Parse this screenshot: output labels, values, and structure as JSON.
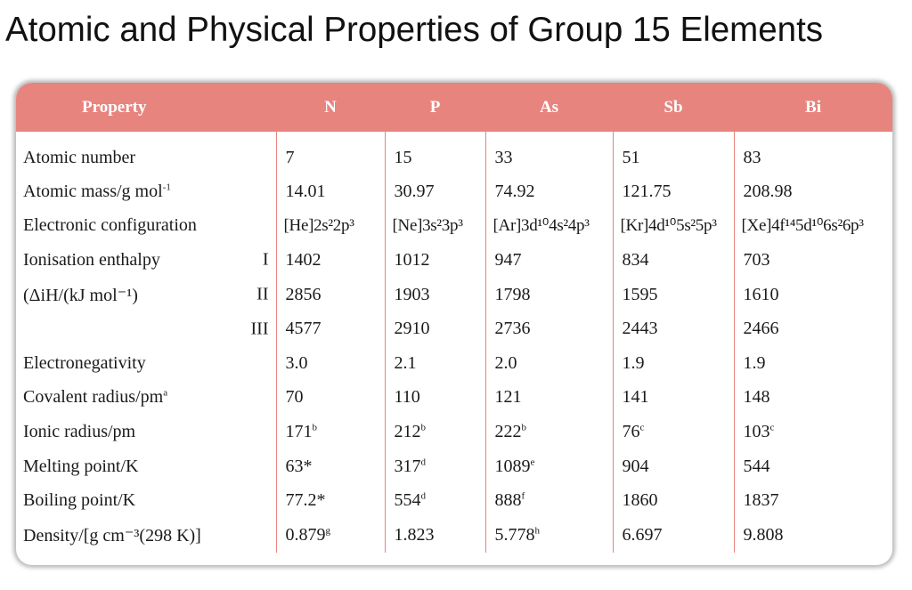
{
  "title": "Atomic and Physical Properties of Group 15 Elements",
  "colors": {
    "header_bg": "#e7847e",
    "header_text": "#ffffff",
    "divider": "#e7847e"
  },
  "table": {
    "headers": [
      "Property",
      "N",
      "P",
      "As",
      "Sb",
      "Bi"
    ],
    "rows": [
      {
        "label": "Atomic number",
        "sublabel": "",
        "values": [
          "7",
          "15",
          "33",
          "51",
          "83"
        ]
      },
      {
        "label": "Atomic mass/g mol",
        "label_sup": "-1",
        "sublabel": "",
        "values": [
          "14.01",
          "30.97",
          "74.92",
          "121.75",
          "208.98"
        ]
      },
      {
        "label": "Electronic configuration",
        "sublabel": "",
        "values": [
          "[He]2s²2p³",
          "[Ne]3s²3p³",
          "[Ar]3d¹⁰4s²4p³",
          "[Kr]4d¹⁰5s²5p³",
          "[Xe]4f¹⁴5d¹⁰6s²6p³"
        ]
      },
      {
        "label": "Ionisation enthalpy",
        "sublabel": "I",
        "values": [
          "1402",
          "1012",
          "947",
          "834",
          "703"
        ]
      },
      {
        "label": "(ΔiH/(kJ mol⁻¹)",
        "sublabel": "II",
        "values": [
          "2856",
          "1903",
          "1798",
          "1595",
          "1610"
        ]
      },
      {
        "label": "",
        "sublabel": "III",
        "values": [
          "4577",
          "2910",
          "2736",
          "2443",
          "2466"
        ]
      },
      {
        "label": "Electronegativity",
        "sublabel": "",
        "values": [
          "3.0",
          "2.1",
          "2.0",
          "1.9",
          "1.9"
        ]
      },
      {
        "label": "Covalent radius/pm",
        "label_sup": "a",
        "sublabel": "",
        "values": [
          "70",
          "110",
          "121",
          "141",
          "148"
        ]
      },
      {
        "label": "Ionic radius/pm",
        "sublabel": "",
        "values": [
          "171",
          "212",
          "222",
          "76",
          "103"
        ],
        "sups": [
          "b",
          "b",
          "b",
          "c",
          "c"
        ]
      },
      {
        "label": "Melting point/K",
        "sublabel": "",
        "values": [
          "63*",
          "317",
          "1089",
          "904",
          "544"
        ],
        "sups": [
          "",
          "d",
          "e",
          "",
          ""
        ]
      },
      {
        "label": "Boiling point/K",
        "sublabel": "",
        "values": [
          "77.2*",
          "554",
          "888",
          "1860",
          "1837"
        ],
        "sups": [
          "",
          "d",
          "f",
          "",
          ""
        ]
      },
      {
        "label": "Density/[g cm⁻³(298 K)]",
        "sublabel": "",
        "values": [
          "0.879",
          "1.823",
          "5.778",
          "6.697",
          "9.808"
        ],
        "sups": [
          "g",
          "",
          "h",
          "",
          ""
        ]
      }
    ]
  }
}
